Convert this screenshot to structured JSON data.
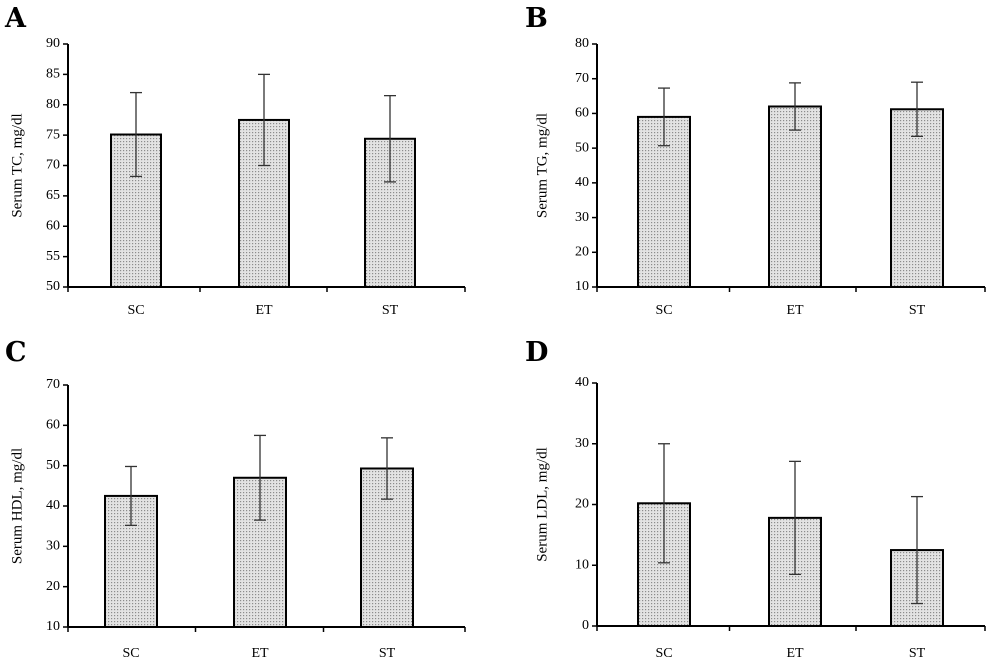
{
  "chart_data": [
    {
      "panel": "A",
      "type": "bar",
      "categories": [
        "SC",
        "ET",
        "ST"
      ],
      "values": [
        75.1,
        77.5,
        74.4
      ],
      "errors": [
        6.9,
        7.5,
        7.1
      ],
      "ylabel": "Serum TC, mg/dl",
      "xlabel": "",
      "ylim": [
        50,
        90
      ],
      "yticks": [
        50,
        55,
        60,
        65,
        70,
        75,
        80,
        85,
        90
      ]
    },
    {
      "panel": "B",
      "type": "bar",
      "categories": [
        "SC",
        "ET",
        "ST"
      ],
      "values": [
        59,
        62,
        61.2
      ],
      "errors": [
        8.3,
        6.8,
        7.8
      ],
      "ylabel": "Serum TG, mg/dl",
      "xlabel": "",
      "ylim": [
        10,
        80
      ],
      "yticks": [
        10,
        20,
        30,
        40,
        50,
        60,
        70,
        80
      ]
    },
    {
      "panel": "C",
      "type": "bar",
      "categories": [
        "SC",
        "ET",
        "ST"
      ],
      "values": [
        42.5,
        47,
        49.3
      ],
      "errors": [
        7.3,
        10.5,
        7.6
      ],
      "ylabel": "Serum HDL, mg/dl",
      "xlabel": "",
      "ylim": [
        10,
        70
      ],
      "yticks": [
        10,
        20,
        30,
        40,
        50,
        60,
        70
      ]
    },
    {
      "panel": "D",
      "type": "bar",
      "categories": [
        "SC",
        "ET",
        "ST"
      ],
      "values": [
        20.2,
        17.8,
        12.5
      ],
      "errors": [
        9.8,
        9.3,
        8.8
      ],
      "ylabel": "Serum LDL, mg/dl",
      "xlabel": "",
      "ylim": [
        0,
        40
      ],
      "yticks": [
        0,
        10,
        20,
        30,
        40
      ]
    }
  ]
}
